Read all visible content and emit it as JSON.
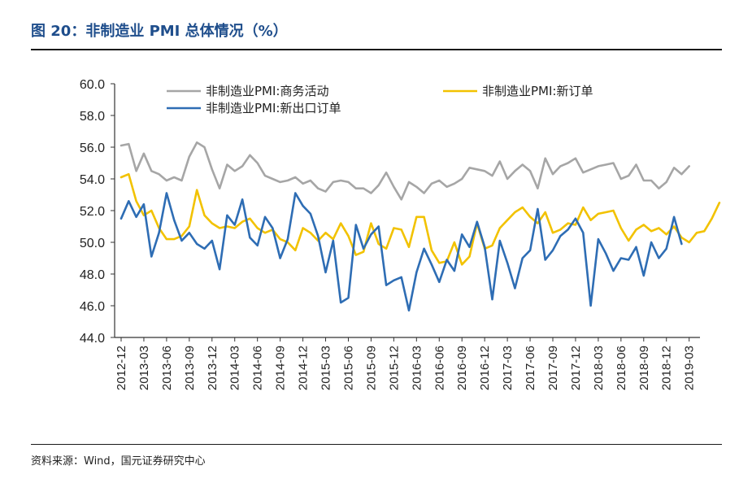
{
  "header": {
    "title": "图 20：非制造业 PMI 总体情况（%）"
  },
  "footer": {
    "source": "资料来源：Wind，国元证券研究中心"
  },
  "chart_data": {
    "type": "line",
    "title": "图 20：非制造业 PMI 总体情况（%）",
    "xlabel": "",
    "ylabel": "",
    "ylim": [
      44.0,
      60.0
    ],
    "yticks": [
      "44.0",
      "46.0",
      "48.0",
      "50.0",
      "52.0",
      "54.0",
      "56.0",
      "58.0",
      "60.0"
    ],
    "x_tick_labels": [
      "2012-12",
      "2013-03",
      "2013-06",
      "2013-09",
      "2013-12",
      "2014-03",
      "2014-06",
      "2014-09",
      "2014-12",
      "2015-03",
      "2015-06",
      "2015-09",
      "2015-12",
      "2016-03",
      "2016-06",
      "2016-09",
      "2016-12",
      "2017-03",
      "2017-06",
      "2017-09",
      "2017-12",
      "2018-03",
      "2018-06",
      "2018-09",
      "2018-12",
      "2019-03"
    ],
    "start_month": "2012-12",
    "legend": {
      "placement": "top"
    },
    "series": [
      {
        "name": "非制造业PMI:商务活动",
        "color": "#a6a6a6",
        "values": [
          56.1,
          56.2,
          54.5,
          55.6,
          54.5,
          54.3,
          53.9,
          54.1,
          53.9,
          55.4,
          56.3,
          56.0,
          54.6,
          53.4,
          54.9,
          54.5,
          54.8,
          55.5,
          55.0,
          54.2,
          54.0,
          53.8,
          53.9,
          54.1,
          53.7,
          53.9,
          53.4,
          53.2,
          53.8,
          53.9,
          53.8,
          53.4,
          53.4,
          53.1,
          53.6,
          54.4,
          53.5,
          52.7,
          53.8,
          53.5,
          53.1,
          53.7,
          53.9,
          53.5,
          53.7,
          54.0,
          54.7,
          54.6,
          54.5,
          54.2,
          55.1,
          54.0,
          54.5,
          54.9,
          54.5,
          53.4,
          55.3,
          54.3,
          54.8,
          55.0,
          55.3,
          54.4,
          54.6,
          54.8,
          54.9,
          55.0,
          54.0,
          54.2,
          54.9,
          53.9,
          53.9,
          53.4,
          53.8,
          54.7,
          54.3,
          54.8
        ]
      },
      {
        "name": "非制造业PMI:新订单",
        "color": "#f2c200",
        "values": [
          54.1,
          54.3,
          52.6,
          51.7,
          52.0,
          50.9,
          50.2,
          50.2,
          50.4,
          51.0,
          53.3,
          51.7,
          51.2,
          50.9,
          51.0,
          50.9,
          51.3,
          51.5,
          50.9,
          50.6,
          50.8,
          50.2,
          50.0,
          49.5,
          50.9,
          50.6,
          50.1,
          50.6,
          50.2,
          51.2,
          50.4,
          49.2,
          49.4,
          51.2,
          49.9,
          49.6,
          50.9,
          50.8,
          49.7,
          51.6,
          51.6,
          49.5,
          48.7,
          48.8,
          50.0,
          48.6,
          49.1,
          51.2,
          49.6,
          49.8,
          50.9,
          51.4,
          51.9,
          52.2,
          51.6,
          51.2,
          51.9,
          50.6,
          50.8,
          51.2,
          51.1,
          52.2,
          51.4,
          51.8,
          51.9,
          52.0,
          50.9,
          50.1,
          50.8,
          51.1,
          50.7,
          50.9,
          50.5,
          51.0,
          50.3,
          50.0,
          50.6,
          50.7,
          51.5,
          52.5
        ]
      },
      {
        "name": "非制造业PMI:新出口订单",
        "color": "#2e6db4",
        "values": [
          51.5,
          52.6,
          51.6,
          52.4,
          49.1,
          50.6,
          53.1,
          51.4,
          50.1,
          50.6,
          49.9,
          49.6,
          50.1,
          48.3,
          51.7,
          51.1,
          52.7,
          50.3,
          49.8,
          51.6,
          50.9,
          49.0,
          50.2,
          53.1,
          52.3,
          51.8,
          50.4,
          48.1,
          50.1,
          46.2,
          46.5,
          51.1,
          49.6,
          50.5,
          51.0,
          47.3,
          47.6,
          47.8,
          45.7,
          48.1,
          49.6,
          48.6,
          47.5,
          48.9,
          48.2,
          50.5,
          49.7,
          51.3,
          49.7,
          46.4,
          50.1,
          48.7,
          47.1,
          49.0,
          49.5,
          52.1,
          48.9,
          49.5,
          50.4,
          50.8,
          51.5,
          50.6,
          46.0,
          50.2,
          49.3,
          48.2,
          49.0,
          48.9,
          49.7,
          47.9,
          50.0,
          49.0,
          49.6,
          51.6,
          49.9
        ]
      }
    ]
  }
}
